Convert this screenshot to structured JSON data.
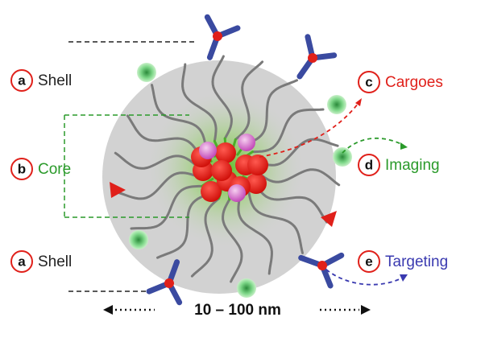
{
  "labels": [
    {
      "letter": "a",
      "text": "Shell"
    },
    {
      "letter": "b",
      "text": "Core"
    },
    {
      "letter": "a",
      "text": "Shell"
    },
    {
      "letter": "c",
      "text": "Cargoes"
    },
    {
      "letter": "d",
      "text": "Imaging"
    },
    {
      "letter": "e",
      "text": "Targeting"
    }
  ],
  "size_label": "10 – 100 nm"
}
